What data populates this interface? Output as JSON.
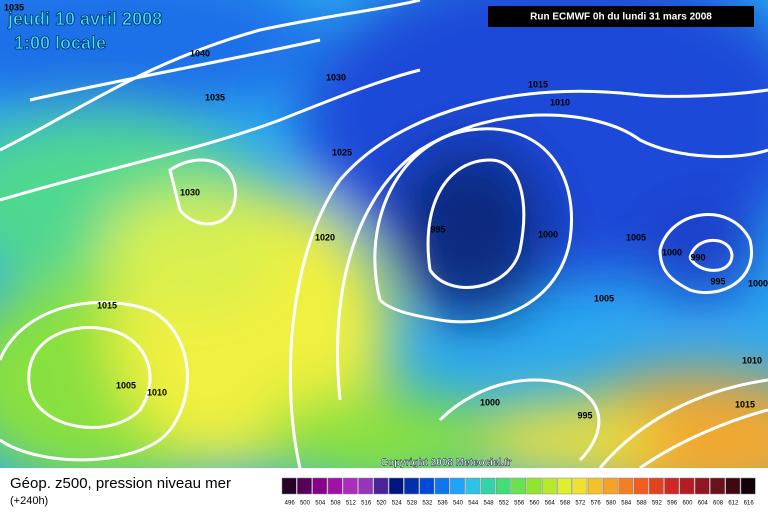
{
  "header": {
    "date": "jeudi 10 avril 2008",
    "time": "1:00 locale",
    "run": "Run ECMWF 0h du lundi 31 mars 2008"
  },
  "map": {
    "isobar_labels": [
      1035,
      1040,
      1030,
      1035,
      1015,
      1010,
      1025,
      1030,
      995,
      1000,
      1005,
      1000,
      990,
      995,
      1000,
      1020,
      1005,
      1015,
      1005,
      1010,
      1000,
      995,
      1010,
      1015
    ],
    "copyright": "Copyright 2008 Meteociel.fr"
  },
  "footer": {
    "title": "Géop. z500, pression niveau mer",
    "lead": "(+240h)"
  },
  "scale": {
    "labels": [
      496,
      500,
      504,
      508,
      512,
      516,
      520,
      524,
      528,
      532,
      536,
      540,
      544,
      548,
      552,
      556,
      560,
      564,
      568,
      572,
      576,
      580,
      584,
      588,
      592,
      596,
      600,
      604,
      608,
      612,
      616
    ]
  }
}
